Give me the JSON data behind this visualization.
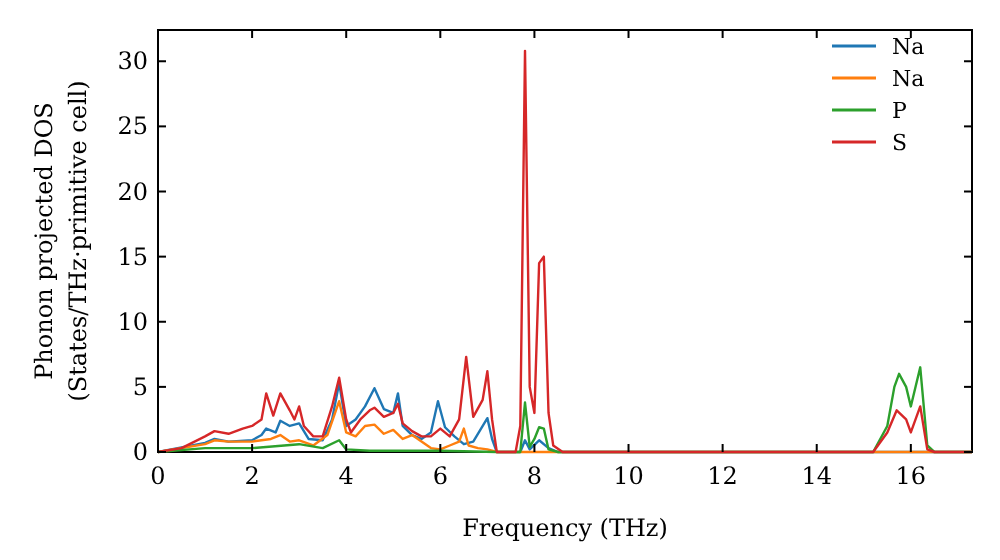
{
  "chart_data": {
    "type": "line",
    "xlabel": "Frequency (THz)",
    "ylabel": "Phonon projected DOS\n(States/THz·primitive cell)",
    "xlim": [
      0,
      17.3
    ],
    "ylim": [
      0,
      32.4
    ],
    "xticks": [
      0,
      2,
      4,
      6,
      8,
      10,
      12,
      14,
      16
    ],
    "yticks": [
      0,
      5,
      10,
      15,
      20,
      25,
      30
    ],
    "legend": "top right",
    "grid": false,
    "series": [
      {
        "name": "Na",
        "color": "#1f77b4",
        "x": [
          0,
          1,
          1.2,
          1.5,
          2,
          2.2,
          2.3,
          2.5,
          2.6,
          2.8,
          3.0,
          3.2,
          3.5,
          3.7,
          3.85,
          4.0,
          4.2,
          4.4,
          4.6,
          4.8,
          5.0,
          5.1,
          5.2,
          5.4,
          5.6,
          5.8,
          5.95,
          6.1,
          6.3,
          6.5,
          6.7,
          7.0,
          7.1,
          7.2,
          7.7,
          7.8,
          7.9,
          8.1,
          8.3,
          8.5,
          17.3
        ],
        "values": [
          0,
          0.7,
          1.0,
          0.8,
          0.9,
          1.3,
          1.8,
          1.5,
          2.4,
          2.0,
          2.2,
          1.0,
          0.9,
          2.5,
          5.3,
          2.0,
          2.5,
          3.5,
          4.9,
          3.3,
          3.0,
          4.5,
          2.0,
          1.3,
          1.0,
          1.5,
          3.9,
          1.9,
          1.2,
          0.6,
          0.8,
          2.6,
          1.0,
          0,
          0,
          0.9,
          0.2,
          0.9,
          0.3,
          0,
          0
        ]
      },
      {
        "name": "Na",
        "color": "#ff7f0e",
        "x": [
          0,
          1,
          1.2,
          1.5,
          2,
          2.2,
          2.4,
          2.6,
          2.8,
          3.0,
          3.3,
          3.6,
          3.85,
          4.0,
          4.2,
          4.4,
          4.6,
          4.8,
          5.0,
          5.2,
          5.4,
          5.6,
          5.8,
          6.0,
          6.2,
          6.4,
          6.5,
          6.6,
          6.8,
          7.0,
          7.2,
          17.3
        ],
        "values": [
          0,
          0.6,
          0.9,
          0.8,
          0.8,
          0.9,
          1.0,
          1.3,
          0.8,
          0.9,
          0.5,
          1.3,
          3.9,
          1.5,
          1.2,
          2.0,
          2.1,
          1.4,
          1.7,
          1.0,
          1.3,
          0.8,
          0.3,
          0.2,
          0.5,
          0.8,
          1.8,
          0.5,
          0.3,
          0.2,
          0,
          0
        ]
      },
      {
        "name": "P",
        "color": "#2ca02c",
        "x": [
          0,
          1,
          2,
          3,
          3.5,
          3.85,
          4.0,
          4.5,
          5,
          6,
          7.2,
          7.7,
          7.8,
          7.9,
          8.0,
          8.1,
          8.2,
          8.3,
          8.5,
          15.2,
          15.5,
          15.65,
          15.75,
          15.9,
          16.0,
          16.2,
          16.35,
          16.5,
          17.3
        ],
        "values": [
          0,
          0.3,
          0.3,
          0.6,
          0.3,
          0.9,
          0.2,
          0.1,
          0.1,
          0.1,
          0,
          0,
          3.8,
          0.4,
          1.0,
          1.9,
          1.8,
          0.2,
          0,
          0,
          2,
          5.0,
          6.0,
          5.0,
          3.5,
          6.5,
          0.5,
          0,
          0
        ]
      },
      {
        "name": "S",
        "color": "#d62728",
        "x": [
          0,
          0.5,
          1,
          1.2,
          1.5,
          1.8,
          2,
          2.2,
          2.3,
          2.45,
          2.6,
          2.8,
          2.9,
          3.0,
          3.1,
          3.3,
          3.5,
          3.7,
          3.85,
          4.0,
          4.1,
          4.3,
          4.5,
          4.6,
          4.8,
          5.0,
          5.1,
          5.2,
          5.4,
          5.6,
          5.8,
          6.0,
          6.2,
          6.4,
          6.55,
          6.7,
          6.9,
          7.0,
          7.1,
          7.2,
          7.6,
          7.7,
          7.8,
          7.9,
          8.0,
          8.1,
          8.2,
          8.3,
          8.4,
          8.6,
          15.2,
          15.5,
          15.7,
          15.9,
          16.0,
          16.2,
          16.35,
          16.5,
          17.3
        ],
        "values": [
          0,
          0.3,
          1.2,
          1.6,
          1.4,
          1.8,
          2.0,
          2.5,
          4.5,
          2.8,
          4.5,
          3.2,
          2.5,
          3.5,
          2.0,
          1.2,
          1.2,
          3.5,
          5.7,
          2.5,
          1.5,
          2.5,
          3.2,
          3.4,
          2.7,
          3.0,
          3.7,
          2.2,
          1.6,
          1.2,
          1.2,
          1.8,
          1.2,
          2.5,
          7.3,
          2.7,
          4.0,
          6.2,
          2.5,
          0,
          0,
          2,
          30.8,
          5,
          3.0,
          14.5,
          15,
          3,
          0.5,
          0,
          0,
          1.5,
          3.2,
          2.5,
          1.5,
          3.5,
          0.2,
          0,
          0
        ]
      }
    ]
  }
}
